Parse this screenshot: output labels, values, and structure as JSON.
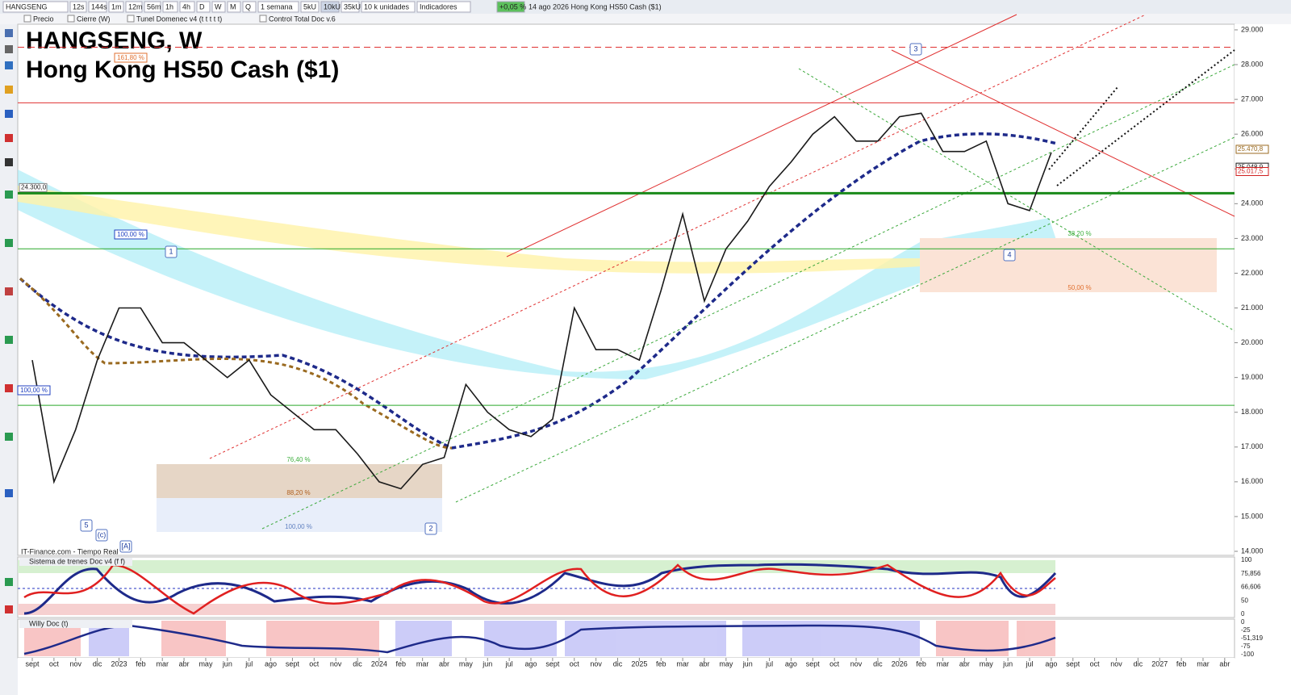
{
  "toolbar": {
    "symbol": "HANGSENG",
    "intervals": [
      "12s",
      "144s",
      "1m",
      "12m",
      "56m",
      "1h",
      "4h",
      "D",
      "W",
      "M",
      "Q"
    ],
    "period": "1 semana",
    "units": [
      "5kU",
      "10kU",
      "35kU"
    ],
    "unit_size": "10 k unidades",
    "indicators": "Indicadores",
    "change": "+0,05 %",
    "info": "14 ago 2026  Hong Kong HS50 Cash ($1)"
  },
  "overlays": [
    "Precio",
    "Cierre (W)",
    "Tunel Domenec v4 (t t t t t)",
    "Control Total Doc v.6"
  ],
  "chart_data": {
    "type": "line",
    "title": "HANGSENG, W",
    "subtitle": "Hong Kong HS50 Cash ($1)",
    "categories": [
      "sept",
      "oct",
      "nov",
      "dic",
      "2023",
      "feb",
      "mar",
      "abr",
      "may",
      "jun",
      "jul",
      "ago",
      "sept",
      "oct",
      "nov",
      "dic",
      "2024",
      "feb",
      "mar",
      "abr",
      "may",
      "jun",
      "jul",
      "ago",
      "sept",
      "oct",
      "nov",
      "dic",
      "2025",
      "feb",
      "mar",
      "abr",
      "may",
      "jun",
      "jul",
      "ago",
      "sept",
      "oct",
      "nov",
      "dic",
      "2026",
      "feb",
      "mar",
      "abr",
      "may",
      "jun",
      "jul",
      "ago",
      "sept",
      "oct",
      "nov",
      "dic",
      "2027",
      "feb",
      "mar",
      "abr"
    ],
    "values": [
      19500,
      16000,
      17500,
      19500,
      21000,
      21000,
      20000,
      20000,
      19500,
      19000,
      19500,
      18500,
      18000,
      17500,
      17500,
      16800,
      16000,
      15800,
      16500,
      16700,
      18800,
      18000,
      17500,
      17300,
      17800,
      21000,
      19800,
      19800,
      19500,
      21500,
      23700,
      21200,
      22700,
      23500,
      24500,
      25200,
      26000,
      26500,
      25800,
      25800,
      26500,
      26600,
      25500,
      25500,
      25800,
      24000,
      23800,
      25470.8,
      null,
      null,
      null,
      null,
      null,
      null,
      null,
      null
    ],
    "color": "#1a1a1a",
    "ylim": [
      13884,
      29162
    ],
    "yticks": [
      {
        "value": 29000,
        "label": "29.000"
      },
      {
        "value": 28000,
        "label": "28.000"
      },
      {
        "value": 27000,
        "label": "27.000"
      },
      {
        "value": 26000,
        "label": "26.000"
      },
      {
        "value": 25000,
        "label": "25.000"
      },
      {
        "value": 24000,
        "label": "24.000"
      },
      {
        "value": 23000,
        "label": "23.000"
      },
      {
        "value": 22000,
        "label": "22.000"
      },
      {
        "value": 21000,
        "label": "21.000"
      },
      {
        "value": 20000,
        "label": "20.000"
      },
      {
        "value": 19000,
        "label": "19.000"
      },
      {
        "value": 18000,
        "label": "18.000"
      },
      {
        "value": 17000,
        "label": "17.000"
      },
      {
        "value": 16000,
        "label": "16.000"
      },
      {
        "value": 15000,
        "label": "15.000"
      },
      {
        "value": 14000,
        "label": "14.000"
      }
    ],
    "levels": [
      {
        "value": 24300,
        "label": "24.300,0",
        "color": "#1a8a1a"
      },
      {
        "value": 22700,
        "color": "#2aa82a"
      },
      {
        "value": 18200,
        "color": "#2aa82a"
      },
      {
        "value": 26900,
        "color": "#e03030"
      },
      {
        "value": 28500,
        "color": "#e03030"
      }
    ],
    "last_prices": [
      {
        "value": 25470.8,
        "label": "25.470,8"
      },
      {
        "value": 25048.9,
        "label": "25.048,9"
      },
      {
        "value": 25017.5,
        "label": "25.017,5"
      }
    ],
    "annotations": [
      "161,80 %",
      "100,00 %",
      "100,00 %",
      "76,40 %",
      "88,20 %",
      "100,00 %",
      "38,20 %",
      "50,00 %"
    ],
    "waves": [
      "1",
      "2",
      "3",
      "4",
      "5",
      "(c)",
      "[A]"
    ],
    "source": "IT-Finance.com - Tiempo Real"
  },
  "panels": [
    {
      "title": "Sistema de trenes Doc v4 (f f)",
      "ticks": [
        "100",
        "75,856",
        "66,606",
        "50",
        "0"
      ]
    },
    {
      "title": "Willy Doc (t)",
      "ticks": [
        "0",
        "-25",
        "-51,319",
        "-75",
        "-100"
      ]
    }
  ]
}
